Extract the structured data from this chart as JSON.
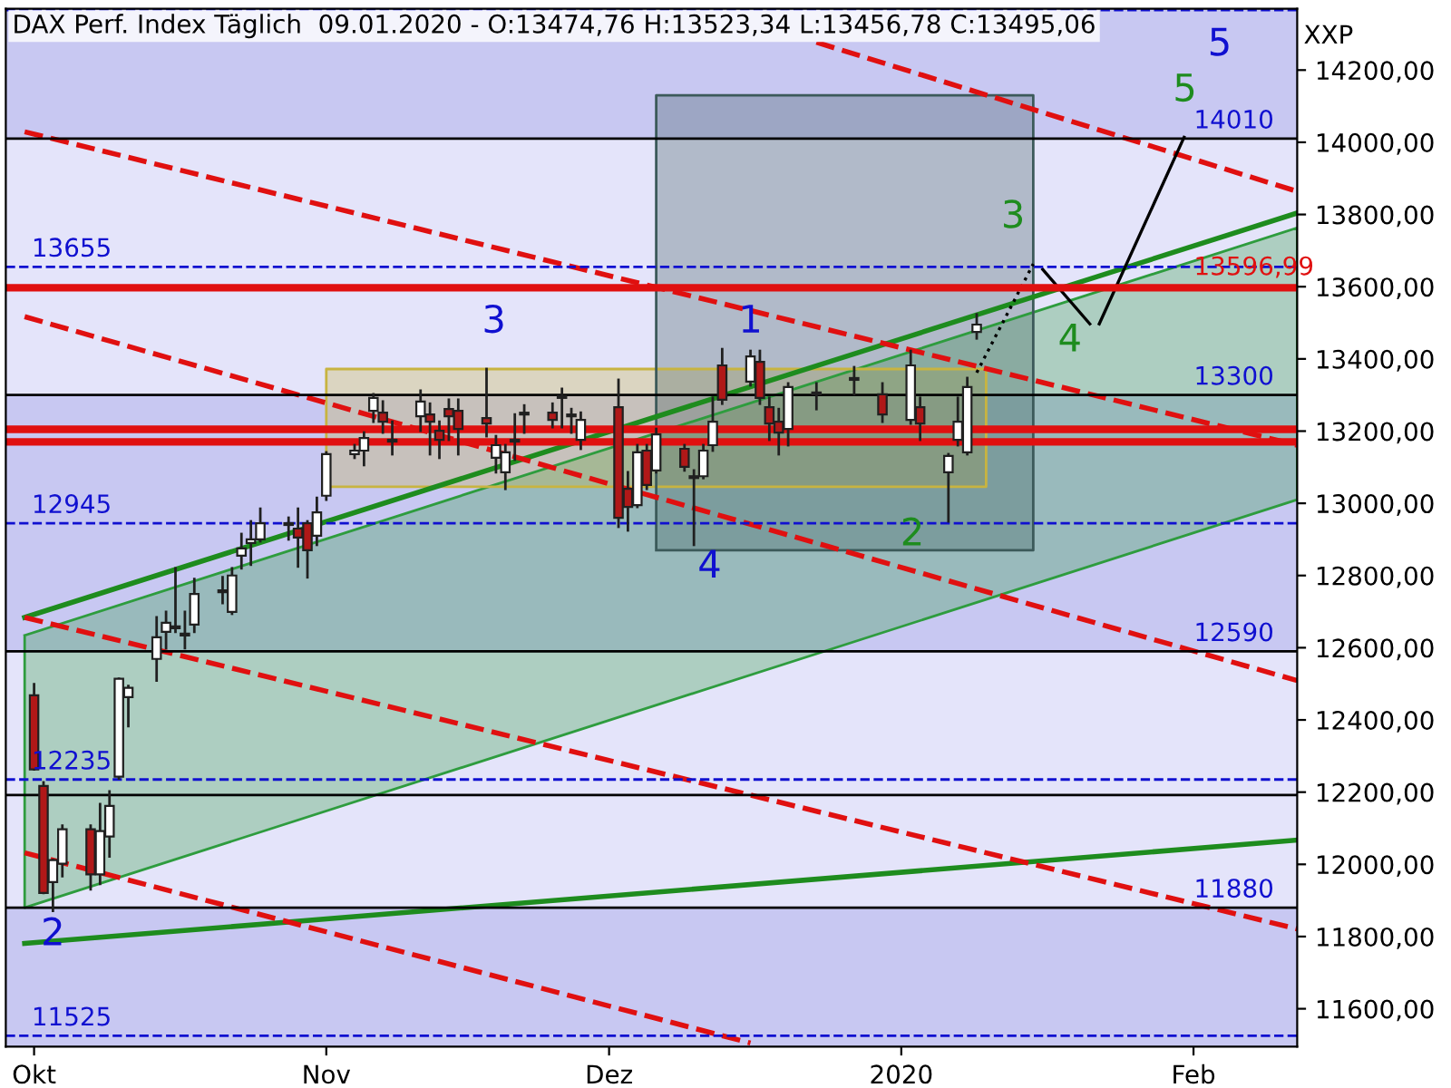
{
  "chart_data": {
    "type": "candlestick",
    "title": "DAX Perf. Index Täglich  09.01.2020 - O:13474,76 H:13523,34 L:13456,78 C:13495,06",
    "ylabel": "XXP",
    "x": [
      "2019-10-01",
      "2019-10-02",
      "2019-10-03",
      "2019-10-04",
      "2019-10-07",
      "2019-10-08",
      "2019-10-09",
      "2019-10-10",
      "2019-10-11",
      "2019-10-14",
      "2019-10-15",
      "2019-10-16",
      "2019-10-17",
      "2019-10-18",
      "2019-10-21",
      "2019-10-22",
      "2019-10-23",
      "2019-10-24",
      "2019-10-25",
      "2019-10-28",
      "2019-10-29",
      "2019-10-30",
      "2019-10-31",
      "2019-11-01",
      "2019-11-04",
      "2019-11-05",
      "2019-11-06",
      "2019-11-07",
      "2019-11-08",
      "2019-11-11",
      "2019-11-12",
      "2019-11-13",
      "2019-11-14",
      "2019-11-15",
      "2019-11-18",
      "2019-11-19",
      "2019-11-20",
      "2019-11-21",
      "2019-11-22",
      "2019-11-25",
      "2019-11-26",
      "2019-11-27",
      "2019-11-28",
      "2019-12-02",
      "2019-12-03",
      "2019-12-04",
      "2019-12-05",
      "2019-12-06",
      "2019-12-09",
      "2019-12-10",
      "2019-12-11",
      "2019-12-12",
      "2019-12-13",
      "2019-12-16",
      "2019-12-17",
      "2019-12-18",
      "2019-12-19",
      "2019-12-20",
      "2019-12-23",
      "2019-12-27",
      "2019-12-30",
      "2020-01-02",
      "2020-01-03",
      "2020-01-06",
      "2020-01-07",
      "2020-01-08",
      "2020-01-09"
    ],
    "ohlc": [
      [
        12468,
        12499,
        12263,
        12263
      ],
      [
        12217,
        12227,
        11921,
        11921
      ],
      [
        11951,
        12012,
        11871,
        12012
      ],
      [
        12002,
        12107,
        11967,
        12097
      ],
      [
        12097,
        12107,
        11931,
        11972
      ],
      [
        11972,
        12167,
        11946,
        12092
      ],
      [
        12077,
        12202,
        12022,
        12162
      ],
      [
        12243,
        12514,
        12238,
        12514
      ],
      [
        12463,
        12494,
        12383,
        12489
      ],
      [
        12569,
        12684,
        12509,
        12629
      ],
      [
        12644,
        12699,
        12599,
        12669
      ],
      [
        12654,
        12820,
        12644,
        12659
      ],
      [
        12634,
        12699,
        12599,
        12639
      ],
      [
        12664,
        12790,
        12644,
        12749
      ],
      [
        12754,
        12795,
        12724,
        12759
      ],
      [
        12699,
        12820,
        12694,
        12800
      ],
      [
        12855,
        12915,
        12820,
        12875
      ],
      [
        12890,
        12950,
        12830,
        12900
      ],
      [
        12900,
        12985,
        12895,
        12945
      ],
      [
        12945,
        12960,
        12900,
        12940
      ],
      [
        12930,
        12985,
        12825,
        12905
      ],
      [
        12945,
        12950,
        12795,
        12870
      ],
      [
        12910,
        13015,
        12885,
        12975
      ],
      [
        13021,
        13141,
        13010,
        13136
      ],
      [
        13136,
        13161,
        13126,
        13146
      ],
      [
        13146,
        13196,
        13106,
        13181
      ],
      [
        13256,
        13302,
        13226,
        13292
      ],
      [
        13251,
        13282,
        13196,
        13226
      ],
      [
        13171,
        13226,
        13136,
        13176
      ],
      [
        13241,
        13312,
        13201,
        13282
      ],
      [
        13246,
        13276,
        13136,
        13226
      ],
      [
        13201,
        13226,
        13126,
        13176
      ],
      [
        13261,
        13287,
        13176,
        13241
      ],
      [
        13256,
        13287,
        13136,
        13206
      ],
      [
        13236,
        13372,
        13186,
        13221
      ],
      [
        13126,
        13186,
        13086,
        13161
      ],
      [
        13086,
        13161,
        13040,
        13141
      ],
      [
        13176,
        13246,
        13121,
        13171
      ],
      [
        13246,
        13271,
        13196,
        13251
      ],
      [
        13251,
        13276,
        13211,
        13231
      ],
      [
        13292,
        13317,
        13211,
        13297
      ],
      [
        13246,
        13261,
        13196,
        13241
      ],
      [
        13176,
        13251,
        13151,
        13231
      ],
      [
        13266,
        13342,
        12935,
        12960
      ],
      [
        13040,
        13086,
        12925,
        12990
      ],
      [
        12995,
        13161,
        12990,
        13141
      ],
      [
        13146,
        13161,
        13040,
        13051
      ],
      [
        13091,
        13206,
        13086,
        13191
      ],
      [
        13151,
        13161,
        13091,
        13101
      ],
      [
        13070,
        13091,
        12885,
        13075
      ],
      [
        13075,
        13161,
        13070,
        13146
      ],
      [
        13161,
        13292,
        13146,
        13226
      ],
      [
        13382,
        13427,
        13276,
        13287
      ],
      [
        13337,
        13422,
        13327,
        13407
      ],
      [
        13392,
        13422,
        13276,
        13292
      ],
      [
        13266,
        13292,
        13176,
        13221
      ],
      [
        13226,
        13261,
        13136,
        13196
      ],
      [
        13206,
        13332,
        13161,
        13322
      ],
      [
        13302,
        13332,
        13261,
        13307
      ],
      [
        13342,
        13377,
        13302,
        13347
      ],
      [
        13302,
        13332,
        13226,
        13246
      ],
      [
        13231,
        13422,
        13221,
        13382
      ],
      [
        13266,
        13292,
        13176,
        13221
      ],
      [
        13086,
        13136,
        12950,
        13131
      ],
      [
        13176,
        13292,
        13161,
        13226
      ],
      [
        13141,
        13347,
        13136,
        13322
      ],
      [
        13474.76,
        13523.34,
        13456.78,
        13495.06
      ]
    ],
    "series": [
      {
        "type": "area",
        "x": [
          "2019-09-30",
          "2020-02-12",
          "2020-02-12",
          "2019-09-30",
          "2019-09-30"
        ],
        "values": [
          12634,
          13763,
          13010,
          11880,
          12634
        ],
        "color": "#2e9c3e"
      },
      {
        "type": "area",
        "x": [
          "2019-11-01",
          "2020-01-10",
          "2020-01-10",
          "2019-11-01",
          "2019-11-01"
        ],
        "values": [
          13046,
          13046,
          13372,
          13372,
          13046
        ],
        "color": "#c8b440"
      },
      {
        "type": "area",
        "x": [
          "2019-12-06",
          "2020-01-15",
          "2020-01-15",
          "2019-12-06",
          "2019-12-06"
        ],
        "values": [
          12870,
          12870,
          14130,
          14130,
          12870
        ],
        "color": "#3c5a5a"
      },
      {
        "type": "line",
        "x": [
          "2019-09-30",
          "2020-02-12"
        ],
        "values": [
          12684,
          13804
        ],
        "color": "#1e8c1e",
        "line_style": "solid"
      },
      {
        "type": "line",
        "x": [
          "2019-09-30",
          "2020-02-12"
        ],
        "values": [
          11781,
          12067
        ],
        "color": "#1e8c1e",
        "line_style": "solid"
      },
      {
        "type": "line",
        "x": [
          "2019-09-30",
          "2020-02-12"
        ],
        "values": [
          14029,
          13161
        ],
        "color": "#e01010",
        "line_style": "dashed"
      },
      {
        "type": "line",
        "x": [
          "2019-09-30",
          "2020-02-12"
        ],
        "values": [
          12684,
          11821
        ],
        "color": "#e01010",
        "line_style": "dashed"
      },
      {
        "type": "line",
        "x": [
          "2019-12-23",
          "2020-02-12"
        ],
        "values": [
          14277,
          13864
        ],
        "color": "#e01010",
        "line_style": "dashed"
      },
      {
        "type": "line",
        "x": [
          "2019-09-30",
          "2020-02-12"
        ],
        "values": [
          13517,
          12509
        ],
        "color": "#e01010",
        "line_style": "dashed"
      },
      {
        "type": "line",
        "x": [
          "2019-09-30",
          "2019-12-16"
        ],
        "values": [
          12032,
          11505
        ],
        "color": "#e01010",
        "line_style": "dashed"
      },
      {
        "type": "line",
        "x": [
          "2020-01-09",
          "2020-01-15"
        ],
        "values": [
          13362,
          13663
        ],
        "color": "#000000",
        "line_style": "dotted"
      },
      {
        "type": "line",
        "x": [
          "2020-01-16",
          "2020-01-21"
        ],
        "values": [
          13648,
          13497
        ],
        "color": "#000000",
        "line_style": "solid"
      },
      {
        "type": "line",
        "x": [
          "2020-01-22",
          "2020-01-31"
        ],
        "values": [
          13497,
          14014
        ],
        "color": "#000000",
        "line_style": "solid"
      }
    ],
    "bands": [
      {
        "axis": "y",
        "from": 14010,
        "to": 14370,
        "color": "#c8c8f2"
      },
      {
        "axis": "y",
        "from": 13300,
        "to": 14010,
        "color": "#e4e4fa"
      },
      {
        "axis": "y",
        "from": 12590,
        "to": 13300,
        "color": "#c8c8f2"
      },
      {
        "axis": "y",
        "from": 11880,
        "to": 12590,
        "color": "#e4e4fa"
      },
      {
        "axis": "y",
        "from": 11495,
        "to": 11880,
        "color": "#c8c8f2"
      }
    ],
    "ref_lines": [
      {
        "axis": "y",
        "value": 14366,
        "color": "#1010d0",
        "line_style": "dashed"
      },
      {
        "axis": "y",
        "value": 14010,
        "label": "14010",
        "color": "#000000",
        "line_style": "solid"
      },
      {
        "axis": "y",
        "value": 13655,
        "label": "13655",
        "color": "#1010d0",
        "line_style": "dashed"
      },
      {
        "axis": "y",
        "value": 13596.99,
        "label": "13596,99",
        "color": "#e01010",
        "line_style": "solid"
      },
      {
        "axis": "y",
        "value": 13300,
        "label": "13300",
        "color": "#000000",
        "line_style": "solid"
      },
      {
        "axis": "y",
        "value": 13205,
        "color": "#e01010",
        "line_style": "solid"
      },
      {
        "axis": "y",
        "value": 13170,
        "color": "#e01010",
        "line_style": "solid"
      },
      {
        "axis": "y",
        "value": 12945,
        "label": "12945",
        "color": "#1010d0",
        "line_style": "dashed"
      },
      {
        "axis": "y",
        "value": 12590,
        "label": "12590",
        "color": "#000000",
        "line_style": "solid"
      },
      {
        "axis": "y",
        "value": 12235,
        "label": "12235",
        "color": "#1010d0",
        "line_style": "dashed"
      },
      {
        "axis": "y",
        "value": 12192,
        "color": "#000000",
        "line_style": "solid"
      },
      {
        "axis": "y",
        "value": 11880,
        "label": "11880",
        "color": "#000000",
        "line_style": "solid"
      },
      {
        "axis": "y",
        "value": 11525,
        "label": "11525",
        "color": "#1010d0",
        "line_style": "dashed"
      }
    ],
    "annotations": [
      {
        "text": "2",
        "x": "2019-10-03",
        "y": 11805
      },
      "3",
      "4",
      "5",
      {
        "text": "1",
        "x": "2019-12-16",
        "y": 13502
      },
      "2",
      "3",
      "4",
      "5"
    ],
    "xlim": [
      "2019-09-28",
      "2020-02-12"
    ],
    "xticks": [
      {
        "value": "2019-10-01",
        "label": "Okt"
      },
      {
        "value": "2019-11-01",
        "label": "Nov"
      },
      {
        "value": "2019-12-01",
        "label": "Dez"
      },
      {
        "value": "2020-01-01",
        "label": "2020"
      },
      {
        "value": "2020-02-01",
        "label": "Feb"
      }
    ],
    "ylim": [
      11495,
      14370
    ],
    "yticks": [
      {
        "value": 11600,
        "label": "11600,00"
      },
      {
        "value": 11800,
        "label": "11800,00"
      },
      {
        "value": 12000,
        "label": "12000,00"
      },
      {
        "value": 12200,
        "label": "12200,00"
      },
      {
        "value": 12400,
        "label": "12400,00"
      },
      {
        "value": 12600,
        "label": "12600,00"
      },
      {
        "value": 12800,
        "label": "12800,00"
      },
      {
        "value": 13000,
        "label": "13000,00"
      },
      {
        "value": 13200,
        "label": "13200,00"
      },
      {
        "value": 13400,
        "label": "13400,00"
      },
      {
        "value": 13600,
        "label": "13600,00"
      },
      {
        "value": 13800,
        "label": "13800,00"
      },
      {
        "value": 14000,
        "label": "14000,00"
      },
      {
        "value": 14200,
        "label": "14200,00"
      }
    ],
    "grid": false,
    "legend": false
  }
}
